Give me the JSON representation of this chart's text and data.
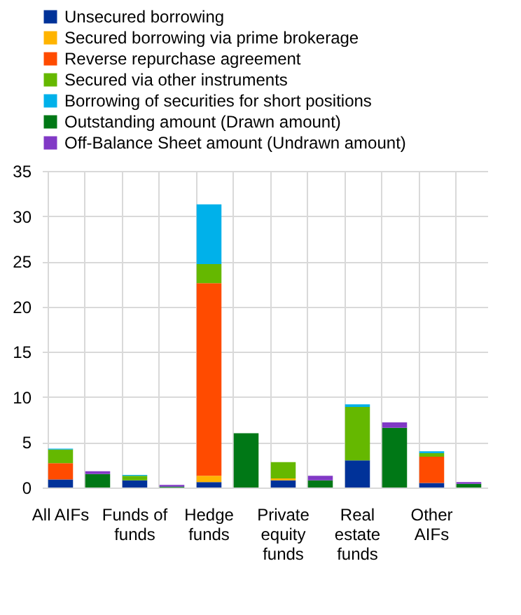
{
  "chart_data": {
    "type": "bar",
    "stacked": true,
    "categories": [
      "All AIFs",
      null,
      "Funds of funds",
      null,
      "Hedge funds",
      null,
      "Private equity funds",
      null,
      "Real estate funds",
      null,
      "Other AIFs",
      null
    ],
    "series": [
      {
        "name": "Unsecured borrowing",
        "color": "#003299",
        "values": [
          0.9,
          null,
          0.8,
          null,
          0.6,
          null,
          0.8,
          null,
          3.0,
          null,
          0.5,
          null
        ]
      },
      {
        "name": "Secured borrowing via prime brokerage",
        "color": "#ffb400",
        "values": [
          0,
          null,
          0,
          null,
          0.7,
          null,
          0.2,
          null,
          0,
          null,
          0,
          null
        ]
      },
      {
        "name": "Reverse repurchase agreement",
        "color": "#ff4b00",
        "values": [
          1.8,
          null,
          0,
          null,
          21.3,
          null,
          0,
          null,
          0,
          null,
          2.9,
          null
        ]
      },
      {
        "name": "Secured via other instruments",
        "color": "#65b800",
        "values": [
          1.5,
          null,
          0.5,
          null,
          2.1,
          null,
          1.8,
          null,
          5.9,
          null,
          0.4,
          null
        ]
      },
      {
        "name": "Borrowing of securities for short positions",
        "color": "#00b1ea",
        "values": [
          0.1,
          null,
          0.1,
          null,
          6.6,
          null,
          0,
          null,
          0.3,
          null,
          0.2,
          null
        ]
      },
      {
        "name": "Outstanding amount (Drawn amount)",
        "color": "#007816",
        "values": [
          null,
          1.5,
          null,
          0.1,
          null,
          6.0,
          null,
          0.8,
          null,
          6.6,
          null,
          0.4
        ]
      },
      {
        "name": "Off-Balance Sheet amount (Undrawn amount)",
        "color": "#8139c6",
        "values": [
          null,
          0.3,
          null,
          0.2,
          null,
          0,
          null,
          0.5,
          null,
          0.6,
          null,
          0.2
        ]
      }
    ],
    "ylim": [
      0,
      35
    ],
    "yticks": [
      0,
      5,
      10,
      15,
      20,
      25,
      30,
      35
    ],
    "grid": true,
    "legend": "top left"
  }
}
